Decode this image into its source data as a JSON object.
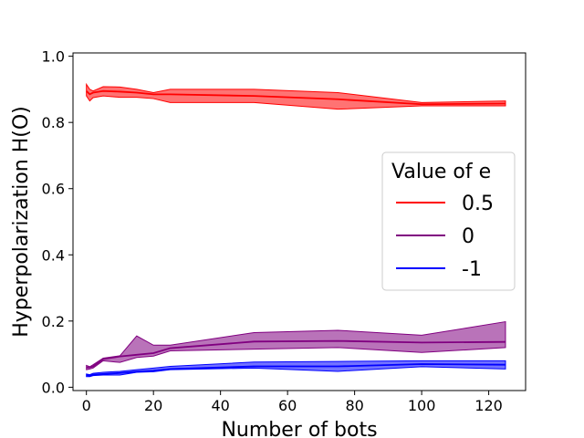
{
  "chart_data": {
    "type": "line",
    "title": "",
    "xlabel": "Number of bots",
    "ylabel": "Hyperpolarization H(O)",
    "xlim": [
      -4,
      131
    ],
    "ylim": [
      -0.01,
      1.01
    ],
    "xticks": [
      0,
      20,
      40,
      60,
      80,
      100,
      120
    ],
    "yticks": [
      0.0,
      0.2,
      0.4,
      0.6,
      0.8,
      1.0
    ],
    "xtick_labels": [
      "0",
      "20",
      "40",
      "60",
      "80",
      "100",
      "120"
    ],
    "ytick_labels": [
      "0.0",
      "0.2",
      "0.4",
      "0.6",
      "0.8",
      "1.0"
    ],
    "legend": {
      "title": "Value of e",
      "position": "center-right"
    },
    "series": [
      {
        "name": "0.5",
        "color": "#ff0000",
        "x": [
          0,
          1,
          2,
          5,
          10,
          15,
          20,
          25,
          50,
          75,
          100,
          125
        ],
        "mean": [
          0.895,
          0.885,
          0.89,
          0.895,
          0.893,
          0.89,
          0.885,
          0.885,
          0.88,
          0.87,
          0.855,
          0.857
        ],
        "upper": [
          0.915,
          0.9,
          0.895,
          0.908,
          0.907,
          0.9,
          0.89,
          0.9,
          0.9,
          0.89,
          0.86,
          0.865
        ],
        "lower": [
          0.88,
          0.865,
          0.875,
          0.88,
          0.876,
          0.876,
          0.872,
          0.86,
          0.86,
          0.84,
          0.85,
          0.85
        ]
      },
      {
        "name": "0",
        "color": "#800080",
        "x": [
          0,
          1,
          2,
          5,
          10,
          15,
          20,
          25,
          50,
          75,
          100,
          125
        ],
        "mean": [
          0.06,
          0.06,
          0.063,
          0.085,
          0.093,
          0.098,
          0.103,
          0.118,
          0.138,
          0.14,
          0.135,
          0.137
        ],
        "upper": [
          0.066,
          0.062,
          0.068,
          0.088,
          0.095,
          0.155,
          0.127,
          0.127,
          0.165,
          0.172,
          0.157,
          0.198
        ],
        "lower": [
          0.053,
          0.055,
          0.058,
          0.08,
          0.075,
          0.09,
          0.094,
          0.11,
          0.115,
          0.12,
          0.105,
          0.12
        ]
      },
      {
        "name": "-1",
        "color": "#0000ff",
        "x": [
          0,
          1,
          2,
          5,
          10,
          15,
          20,
          25,
          50,
          75,
          100,
          125
        ],
        "mean": [
          0.037,
          0.035,
          0.038,
          0.04,
          0.043,
          0.047,
          0.05,
          0.055,
          0.063,
          0.063,
          0.07,
          0.068
        ],
        "upper": [
          0.04,
          0.038,
          0.042,
          0.045,
          0.048,
          0.053,
          0.058,
          0.063,
          0.076,
          0.078,
          0.08,
          0.08
        ],
        "lower": [
          0.032,
          0.032,
          0.035,
          0.037,
          0.037,
          0.045,
          0.047,
          0.053,
          0.058,
          0.048,
          0.062,
          0.055
        ]
      }
    ]
  }
}
